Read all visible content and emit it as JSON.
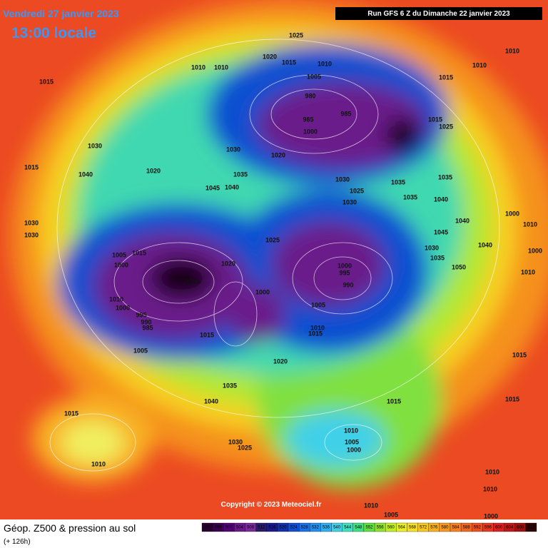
{
  "header": {
    "date": "Vendredi 27 janvier 2023",
    "time": "13:00 locale",
    "run": "Run GFS 6 Z du Dimanche 22 janvier 2023"
  },
  "footer": {
    "title": "Géop. Z500 & pression au sol",
    "subtitle": "(+ 126h)",
    "copyright": "Copyright © 2023 Meteociel.fr"
  },
  "legend": {
    "values": [
      492,
      496,
      500,
      504,
      508,
      512,
      516,
      520,
      524,
      528,
      532,
      536,
      540,
      544,
      548,
      552,
      556,
      560,
      564,
      568,
      572,
      576,
      580,
      584,
      588,
      592,
      596,
      600,
      604,
      608,
      612
    ],
    "colors": [
      "#2a0033",
      "#3d0050",
      "#55007a",
      "#6a1a8a",
      "#7a2a9a",
      "#2a1a6a",
      "#1a1a8a",
      "#1030b0",
      "#1050d0",
      "#1a70e8",
      "#2090f0",
      "#30b0f0",
      "#40d0e8",
      "#40e0c0",
      "#40e080",
      "#60e040",
      "#90e030",
      "#c0f020",
      "#e8f020",
      "#f8e020",
      "#f8c820",
      "#f8b020",
      "#f89820",
      "#f88020",
      "#f06820",
      "#f05020",
      "#e83820",
      "#e02020",
      "#c01818",
      "#a01010",
      "#300404"
    ]
  },
  "map": {
    "isobar_labels": [
      1025,
      1010,
      1020,
      1015,
      1010,
      1010,
      1010,
      1005,
      1010,
      1015,
      1015,
      980,
      985,
      985,
      1000,
      1015,
      1025,
      1030,
      1030,
      1020,
      1015,
      1040,
      1020,
      1035,
      1030,
      1035,
      1035,
      1045,
      1040,
      1025,
      1035,
      1040,
      1030,
      1000,
      1030,
      1030,
      1040,
      1010,
      1045,
      1025,
      1040,
      1005,
      1015,
      1030,
      1000,
      1035,
      1050,
      1000,
      1020,
      1000,
      995,
      1010,
      1015,
      990,
      1010,
      1000,
      1005,
      1000,
      995,
      990,
      985,
      1010,
      1015,
      1005,
      1015,
      1020,
      1015,
      1035,
      1040,
      1015,
      1015,
      1015,
      1010,
      1005,
      1000,
      1030,
      1025,
      1010,
      1010,
      1010,
      1010,
      1005,
      1000
    ]
  }
}
